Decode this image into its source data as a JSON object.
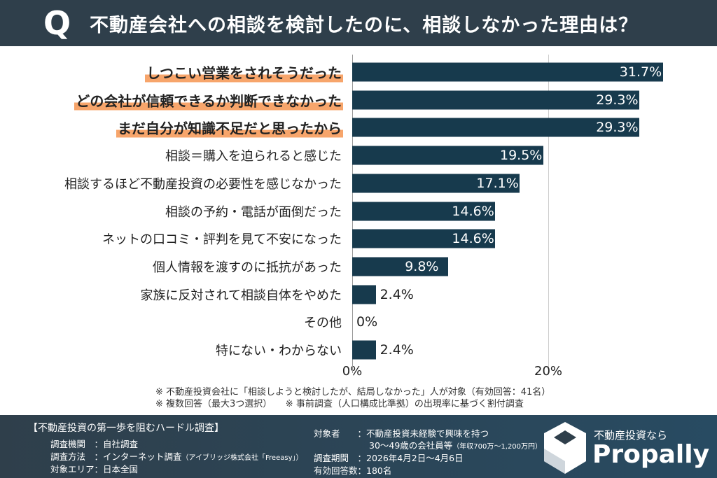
{
  "header": {
    "q": "Q",
    "title": "不動産会社への相談を検討したのに、相談しなかった理由は？"
  },
  "chart_data": {
    "type": "bar",
    "orientation": "horizontal",
    "categories": [
      "しつこい営業をされそうだった",
      "どの会社が信頼できるか判断できなかった",
      "まだ自分が知識不足だと思ったから",
      "相談＝購入を迫られると感じた",
      "相談するほど不動産投資の必要性を感じなかった",
      "相談の予約・電話が面倒だった",
      "ネットの口コミ・評判を見て不安になった",
      "個人情報を渡すのに抵抗があった",
      "家族に反対されて相談自体をやめた",
      "その他",
      "特にない・わからない"
    ],
    "values": [
      31.7,
      29.3,
      29.3,
      19.5,
      17.1,
      14.6,
      14.6,
      9.8,
      2.4,
      0,
      2.4
    ],
    "value_labels": [
      "31.7%",
      "29.3%",
      "29.3%",
      "19.5%",
      "17.1%",
      "14.6%",
      "14.6%",
      "9.8%",
      "2.4%",
      "0%",
      "2.4%"
    ],
    "highlighted": [
      0,
      1,
      2
    ],
    "xlim": [
      0,
      35
    ],
    "ticks": [
      "0%",
      "20%"
    ],
    "tick_values": [
      0,
      20
    ],
    "bar_color": "#173a4d",
    "highlight_color": "#f7a56b",
    "grid": true
  },
  "notes": [
    "※ 不動産投資会社に「相談しようと検討したが、結局しなかった」人が対象（有効回答：41名）",
    "※ 複数回答（最大3つ選択）　　※ 事前調査（人口構成比準拠）の出現率に基づく割付調査"
  ],
  "footer": {
    "survey_title": "【不動産投資の第一歩を阻むハードル調査】",
    "org": "調査機関　：自社調査",
    "method": "調査方法　：インターネット調査",
    "method_note": "（アイブリッジ株式会社「Freeasy」）",
    "area": "対象エリア：日本全国",
    "target": "対象者　　：不動産投資未経験で興味を持つ",
    "target2": "30～49歳の会社員等",
    "target2_note": "（年収700万～1,200万円）",
    "period": "調査期間　：2026年4月2日～4月6日",
    "responses": "有効回答数：180名",
    "brand_tagline": "不動産投資なら",
    "brand_name": "Propally"
  }
}
